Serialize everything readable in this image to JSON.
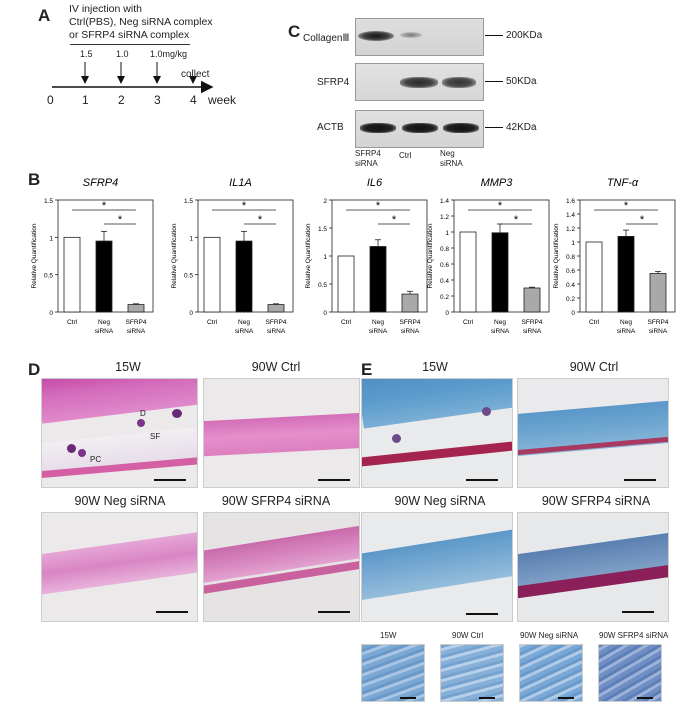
{
  "panelA": {
    "label": "A",
    "injection_text": [
      "IV injection with",
      "Ctrl(PBS), Neg siRNA complex",
      "or SFRP4 siRNA complex"
    ],
    "doses": [
      "1.5",
      "1.0",
      "1.0mg/kg"
    ],
    "collect": "collect",
    "ticks": [
      "0",
      "1",
      "2",
      "3",
      "4"
    ],
    "unit": "week"
  },
  "panelB": {
    "label": "B"
  },
  "panelC": {
    "label": "C",
    "rows": [
      {
        "name": "CollagenⅢ",
        "size": "200KDa"
      },
      {
        "name": "SFRP4",
        "size": "50KDa"
      },
      {
        "name": "ACTB",
        "size": "42KDa"
      }
    ],
    "lanes": [
      "SFRP4\nsiRNA",
      "Ctrl",
      "Neg\nsiRNA"
    ],
    "lane_lines": [
      [
        "SFRP4",
        "siRNA"
      ],
      [
        "Ctrl"
      ],
      [
        "Neg",
        "siRNA"
      ]
    ]
  },
  "panelD": {
    "label": "D",
    "titles": [
      "15W",
      "90W Ctrl",
      "90W Neg siRNA",
      "90W SFRP4 siRNA"
    ],
    "annotations": [
      "D",
      "SF",
      "PC"
    ]
  },
  "panelE": {
    "label": "E",
    "titles": [
      "15W",
      "90W Ctrl",
      "90W Neg siRNA",
      "90W SFRP4 siRNA"
    ],
    "zoom_titles": [
      "15W",
      "90W Ctrl",
      "90W Neg siRNA",
      "90W SFRP4 siRNA"
    ]
  },
  "chart_data": [
    {
      "type": "bar",
      "title": "SFRP4",
      "ylabel": "Relative Quantification",
      "categories": [
        "Ctrl",
        "Neg\nsiRNA",
        "SFRP4\nsiRNA"
      ],
      "values": [
        1.0,
        0.95,
        0.1
      ],
      "errors": [
        0,
        0.13,
        0.01
      ],
      "ylim": [
        0,
        1.5
      ],
      "yticks": [
        "0",
        "0.5",
        "1",
        "1.5"
      ],
      "sig": [
        "*",
        "*"
      ],
      "colors": [
        "#ffffff",
        "#000000",
        "#a9a9a9"
      ]
    },
    {
      "type": "bar",
      "title": "IL1A",
      "ylabel": "Relative Quantification",
      "categories": [
        "Ctrl",
        "Neg\nsiRNA",
        "SFRP4\nsiRNA"
      ],
      "values": [
        1.0,
        0.95,
        0.1
      ],
      "errors": [
        0,
        0.13,
        0.01
      ],
      "ylim": [
        0,
        1.5
      ],
      "yticks": [
        "0",
        "0.5",
        "1",
        "1.5"
      ],
      "sig": [
        "*",
        "*"
      ],
      "colors": [
        "#ffffff",
        "#000000",
        "#a9a9a9"
      ]
    },
    {
      "type": "bar",
      "title": "IL6",
      "ylabel": "Relative Quantification",
      "categories": [
        "Ctrl",
        "Neg\nsiRNA",
        "SFRP4\nsiRNA"
      ],
      "values": [
        1.0,
        1.17,
        0.32
      ],
      "errors": [
        0,
        0.12,
        0.05
      ],
      "ylim": [
        0,
        2
      ],
      "yticks": [
        "0",
        "0.5",
        "1",
        "1.5",
        "2"
      ],
      "sig": [
        "*",
        "*"
      ],
      "colors": [
        "#ffffff",
        "#000000",
        "#a9a9a9"
      ]
    },
    {
      "type": "bar",
      "title": "MMP3",
      "ylabel": "Relative Quantification",
      "categories": [
        "Ctrl",
        "Neg\nsiRNA",
        "SFRP4\nsiRNA"
      ],
      "values": [
        1.0,
        0.99,
        0.3
      ],
      "errors": [
        0,
        0.11,
        0.01
      ],
      "ylim": [
        0,
        1.4
      ],
      "yticks": [
        "0",
        "0.2",
        "0.4",
        "0.6",
        "0.8",
        "1",
        "1.2",
        "1.4"
      ],
      "sig": [
        "*",
        "*"
      ],
      "colors": [
        "#ffffff",
        "#000000",
        "#a9a9a9"
      ]
    },
    {
      "type": "bar",
      "title": "TNF-α",
      "ylabel": "Relative Quantification",
      "categories": [
        "Ctrl",
        "Neg\nsiRNA",
        "SFRP4\nsiRNA"
      ],
      "values": [
        1.0,
        1.08,
        0.55
      ],
      "errors": [
        0,
        0.09,
        0.03
      ],
      "ylim": [
        0,
        1.6
      ],
      "yticks": [
        "0",
        "0.2",
        "0.4",
        "0.6",
        "0.8",
        "1",
        "1.2",
        "1.4",
        "1.6"
      ],
      "sig": [
        "*",
        "*"
      ],
      "colors": [
        "#ffffff",
        "#000000",
        "#a9a9a9"
      ]
    }
  ]
}
